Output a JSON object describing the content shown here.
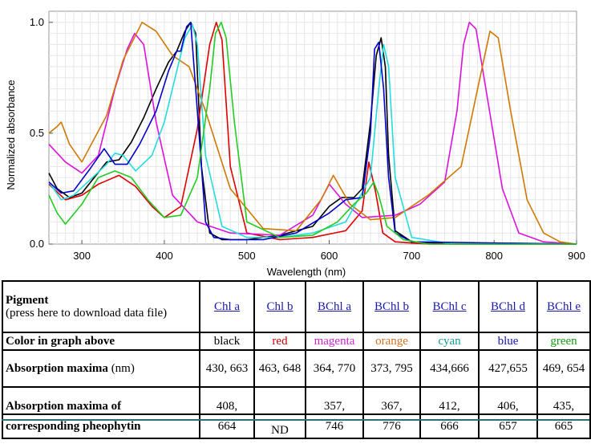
{
  "chart_data": {
    "type": "line",
    "title": "",
    "xlabel": "Wavelength (nm)",
    "ylabel": "Normalized absorbance",
    "xlim": [
      260,
      900
    ],
    "ylim": [
      0,
      1.05
    ],
    "x_ticks": [
      300,
      400,
      500,
      600,
      700,
      800,
      900
    ],
    "y_ticks": [
      0.0,
      0.5,
      1.0
    ],
    "x_tick_labels": [
      "300",
      "400",
      "500",
      "600",
      "700",
      "800",
      "900"
    ],
    "y_tick_labels": [
      "0.0",
      "0.5",
      "1.0"
    ],
    "grid": true,
    "series": [
      {
        "name": "Chl a",
        "color": "#000000",
        "x": [
          260,
          270,
          285,
          300,
          315,
          330,
          345,
          360,
          375,
          390,
          405,
          415,
          425,
          432,
          438,
          445,
          455,
          470,
          500,
          540,
          580,
          600,
          615,
          630,
          640,
          650,
          657,
          663,
          668,
          672,
          680,
          700,
          750,
          800,
          900
        ],
        "y": [
          0.32,
          0.25,
          0.21,
          0.23,
          0.3,
          0.37,
          0.38,
          0.46,
          0.57,
          0.7,
          0.82,
          0.87,
          0.96,
          1.0,
          0.95,
          0.35,
          0.05,
          0.02,
          0.02,
          0.04,
          0.08,
          0.17,
          0.21,
          0.21,
          0.25,
          0.55,
          0.85,
          0.93,
          0.8,
          0.4,
          0.06,
          0.01,
          0.0,
          0.0,
          0.0
        ]
      },
      {
        "name": "Chl b",
        "color": "#dd0000",
        "x": [
          260,
          280,
          300,
          320,
          345,
          365,
          385,
          400,
          420,
          440,
          455,
          463,
          470,
          480,
          500,
          540,
          580,
          620,
          640,
          648,
          656,
          665,
          680,
          720,
          900
        ],
        "y": [
          0.27,
          0.2,
          0.22,
          0.27,
          0.31,
          0.26,
          0.17,
          0.12,
          0.17,
          0.52,
          0.9,
          1.0,
          0.92,
          0.35,
          0.05,
          0.02,
          0.03,
          0.06,
          0.15,
          0.37,
          0.24,
          0.05,
          0.01,
          0.0,
          0.0
        ]
      },
      {
        "name": "BChl a",
        "color": "#dd11dd",
        "x": [
          260,
          280,
          300,
          320,
          340,
          355,
          364,
          375,
          390,
          410,
          440,
          480,
          540,
          580,
          600,
          620,
          640,
          680,
          710,
          740,
          755,
          763,
          770,
          778,
          790,
          810,
          830,
          860,
          900
        ],
        "y": [
          0.45,
          0.37,
          0.32,
          0.4,
          0.7,
          0.88,
          0.95,
          0.9,
          0.55,
          0.22,
          0.1,
          0.05,
          0.04,
          0.13,
          0.27,
          0.18,
          0.12,
          0.13,
          0.18,
          0.28,
          0.6,
          0.9,
          1.0,
          0.97,
          0.7,
          0.25,
          0.05,
          0.01,
          0.0
        ]
      },
      {
        "name": "BChl b",
        "color": "#d07800",
        "x": [
          260,
          270,
          275,
          285,
          300,
          330,
          350,
          373,
          390,
          410,
          430,
          450,
          480,
          520,
          560,
          590,
          605,
          625,
          650,
          680,
          720,
          760,
          780,
          795,
          805,
          820,
          840,
          860,
          880,
          900
        ],
        "y": [
          0.5,
          0.53,
          0.55,
          0.45,
          0.37,
          0.58,
          0.83,
          1.0,
          0.96,
          0.85,
          0.8,
          0.6,
          0.25,
          0.07,
          0.06,
          0.2,
          0.31,
          0.18,
          0.11,
          0.12,
          0.22,
          0.35,
          0.7,
          0.96,
          0.93,
          0.6,
          0.2,
          0.05,
          0.01,
          0.0
        ]
      },
      {
        "name": "BChl c",
        "color": "#22dddd",
        "x": [
          260,
          275,
          290,
          310,
          330,
          340,
          350,
          365,
          385,
          400,
          415,
          425,
          434,
          440,
          450,
          470,
          500,
          540,
          580,
          620,
          650,
          660,
          666,
          672,
          680,
          700,
          750,
          900
        ],
        "y": [
          0.28,
          0.2,
          0.22,
          0.29,
          0.36,
          0.41,
          0.4,
          0.33,
          0.4,
          0.55,
          0.78,
          0.93,
          0.99,
          0.9,
          0.4,
          0.08,
          0.03,
          0.03,
          0.05,
          0.1,
          0.3,
          0.7,
          0.9,
          0.8,
          0.3,
          0.03,
          0.0,
          0.0
        ]
      },
      {
        "name": "BChl d",
        "color": "#0000cc",
        "x": [
          260,
          275,
          290,
          310,
          327,
          340,
          355,
          370,
          390,
          405,
          415,
          420,
          427,
          432,
          440,
          450,
          460,
          480,
          520,
          560,
          600,
          620,
          640,
          650,
          655,
          660,
          666,
          672,
          680,
          700,
          900
        ],
        "y": [
          0.28,
          0.23,
          0.24,
          0.34,
          0.43,
          0.36,
          0.36,
          0.45,
          0.6,
          0.78,
          0.87,
          0.87,
          0.98,
          1.0,
          0.6,
          0.1,
          0.03,
          0.02,
          0.02,
          0.05,
          0.14,
          0.2,
          0.21,
          0.5,
          0.88,
          0.91,
          0.7,
          0.3,
          0.05,
          0.01,
          0.0
        ]
      },
      {
        "name": "BChl e",
        "color": "#22cc22",
        "x": [
          260,
          270,
          280,
          300,
          320,
          340,
          360,
          380,
          400,
          420,
          440,
          455,
          462,
          469,
          475,
          485,
          500,
          540,
          580,
          610,
          630,
          645,
          654,
          660,
          670,
          690,
          720,
          900
        ],
        "y": [
          0.22,
          0.14,
          0.09,
          0.18,
          0.3,
          0.33,
          0.3,
          0.2,
          0.12,
          0.13,
          0.3,
          0.7,
          0.95,
          1.0,
          0.93,
          0.55,
          0.1,
          0.03,
          0.04,
          0.1,
          0.18,
          0.23,
          0.28,
          0.22,
          0.08,
          0.02,
          0.0,
          0.0
        ]
      }
    ]
  },
  "table": {
    "header_pigment": "Pigment",
    "header_note": "(press here to download data file)",
    "pigments": [
      "Chl a",
      "Chl b",
      "BChl a",
      "BChl b",
      "BChl c",
      "BChl d",
      "BChl e"
    ],
    "color_label": "Color in graph above",
    "colors": [
      "black",
      "red",
      "magenta",
      "orange",
      "cyan",
      "blue",
      "green"
    ],
    "color_hex": [
      "#000000",
      "#cc0000",
      "#cc22cc",
      "#d07020",
      "#119999",
      "#1111bb",
      "#119911"
    ],
    "abs_label_bold": "Absorption maxima",
    "abs_label_unit": " (nm)",
    "abs_values": [
      "430, 663",
      "463, 648",
      "364, 770",
      "373, 795",
      "434,666",
      "427,655",
      "469, 654"
    ],
    "pheo_label": "Absorption maxima of",
    "pheo_values": [
      "408,",
      "",
      "357,",
      "367,",
      "412,",
      "406,",
      "435,"
    ],
    "pheo_label_2": "corresponding pheophytin",
    "pheo_values_2": [
      "664",
      "ND",
      "746",
      "776",
      "666",
      "657",
      "665"
    ]
  }
}
